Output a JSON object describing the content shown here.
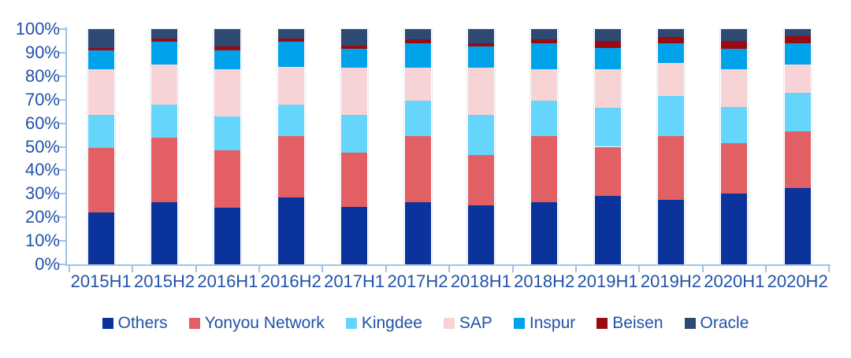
{
  "chart_data": {
    "type": "bar",
    "variant": "stacked-100-percent",
    "title": "",
    "xlabel": "",
    "ylabel": "",
    "ylim": [
      0,
      100
    ],
    "grid": false,
    "legend_position": "bottom",
    "label_color": "#2152A9",
    "axis_color": "#9DC3E6",
    "y_ticks": [
      "0%",
      "10%",
      "20%",
      "30%",
      "40%",
      "50%",
      "60%",
      "70%",
      "80%",
      "90%",
      "100%"
    ],
    "categories": [
      "2015H1",
      "2015H2",
      "2016H1",
      "2016H2",
      "2017H1",
      "2017H2",
      "2018H1",
      "2018H2",
      "2019H1",
      "2019H2",
      "2020H1",
      "2020H2"
    ],
    "series": [
      {
        "name": "Others",
        "color": "#0B339C",
        "values": [
          22.0,
          26.5,
          24.0,
          28.5,
          24.5,
          26.5,
          25.0,
          26.5,
          29.0,
          27.5,
          30.0,
          32.5
        ]
      },
      {
        "name": "Yonyou Network",
        "color": "#E25F63",
        "values": [
          27.5,
          27.5,
          24.5,
          26.0,
          23.0,
          28.0,
          21.5,
          28.0,
          21.0,
          27.0,
          21.5,
          24.0
        ]
      },
      {
        "name": "Kingdee",
        "color": "#66D5FC",
        "values": [
          14.0,
          14.0,
          14.5,
          13.5,
          16.0,
          15.0,
          17.0,
          15.0,
          16.5,
          17.0,
          15.5,
          16.5
        ]
      },
      {
        "name": "SAP",
        "color": "#F8D3D5",
        "values": [
          19.5,
          17.0,
          20.0,
          16.0,
          20.0,
          14.0,
          20.0,
          13.5,
          16.5,
          14.0,
          16.0,
          12.0
        ]
      },
      {
        "name": "Inspur",
        "color": "#00A2E9",
        "values": [
          8.0,
          9.5,
          8.0,
          10.5,
          8.0,
          10.5,
          9.0,
          11.0,
          9.0,
          8.5,
          8.5,
          9.0
        ]
      },
      {
        "name": "Beisen",
        "color": "#9A0B11",
        "values": [
          1.0,
          1.5,
          1.5,
          1.5,
          1.5,
          1.5,
          1.5,
          1.5,
          3.0,
          2.5,
          3.5,
          3.0
        ]
      },
      {
        "name": "Oracle",
        "color": "#2F4A72",
        "values": [
          8.0,
          4.0,
          7.5,
          4.0,
          7.0,
          4.5,
          6.0,
          4.5,
          5.0,
          3.5,
          5.0,
          3.0
        ]
      }
    ]
  }
}
